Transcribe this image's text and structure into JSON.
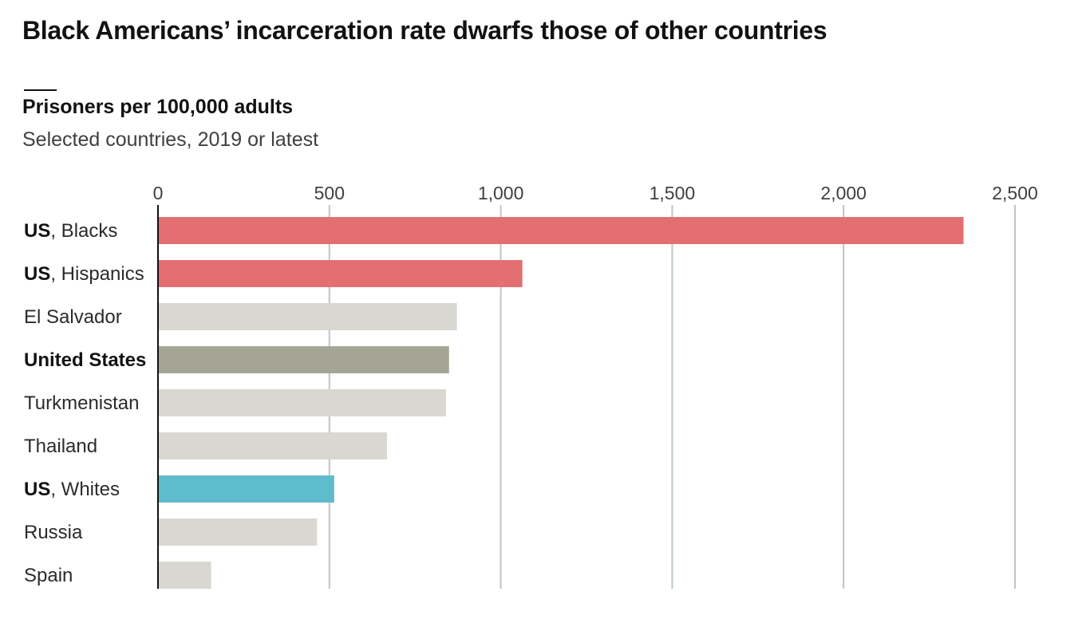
{
  "title": "Black Americans’ incarceration rate dwarfs those of other countries",
  "subtitle": "Prisoners per 100,000 adults",
  "note": "Selected countries, 2019 or latest",
  "colors": {
    "highlight": "#e36f72",
    "us_total": "#a4a595",
    "whites": "#5fbccc",
    "other": "#d8d7d1",
    "grid": "#b9c7cb",
    "axis": "#121212"
  },
  "chart_data": {
    "type": "bar",
    "orientation": "horizontal",
    "xlim": [
      0,
      2500
    ],
    "xticks": [
      0,
      500,
      1000,
      1500,
      2000,
      2500
    ],
    "xtick_labels": [
      "0",
      "500",
      "1,000",
      "1,500",
      "2,000",
      "2,500"
    ],
    "grid": true,
    "rows": [
      {
        "prefix": "US",
        "label": ", Blacks",
        "value": 2350,
        "color_key": "highlight"
      },
      {
        "prefix": "US",
        "label": ", Hispanics",
        "value": 1063,
        "color_key": "highlight"
      },
      {
        "prefix": "",
        "label": "El Salvador",
        "value": 872,
        "color_key": "other"
      },
      {
        "prefix": "United States",
        "label": "",
        "value": 849,
        "color_key": "us_total"
      },
      {
        "prefix": "",
        "label": "Turkmenistan",
        "value": 840,
        "color_key": "other"
      },
      {
        "prefix": "",
        "label": "Thailand",
        "value": 668,
        "color_key": "other"
      },
      {
        "prefix": "US",
        "label": ", Whites",
        "value": 514,
        "color_key": "whites"
      },
      {
        "prefix": "",
        "label": "Russia",
        "value": 464,
        "color_key": "other"
      },
      {
        "prefix": "",
        "label": "Spain",
        "value": 155,
        "color_key": "other"
      }
    ]
  }
}
